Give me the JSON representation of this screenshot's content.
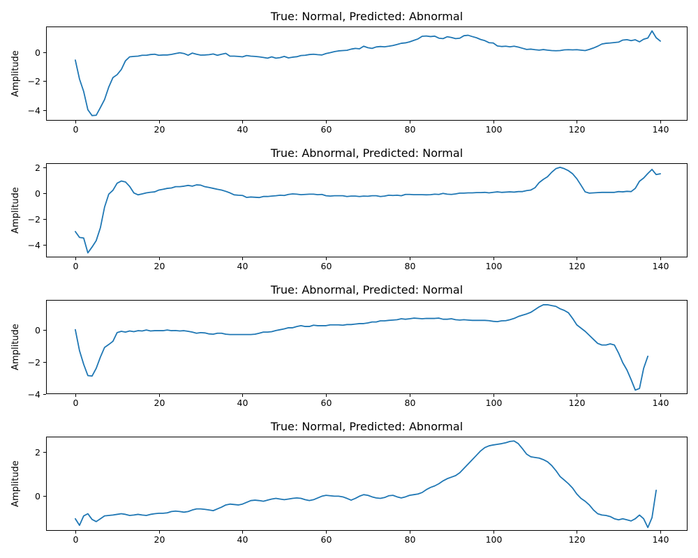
{
  "chart_data": [
    {
      "type": "line",
      "title": "True: Normal, Predicted: Abnormal",
      "xlabel": "",
      "ylabel": "Amplitude",
      "xlim": [
        -7,
        146.5
      ],
      "ylim": [
        -4.7,
        1.75
      ],
      "xticks": [
        0,
        20,
        40,
        60,
        80,
        100,
        120,
        140
      ],
      "yticks": [
        -4,
        -2,
        0
      ],
      "grid": false,
      "series": [
        {
          "color": "#1f77b4",
          "values": [
            -0.55,
            -1.85,
            -2.7,
            -3.95,
            -4.35,
            -4.33,
            -3.8,
            -3.25,
            -2.4,
            -1.75,
            -1.55,
            -1.2,
            -0.6,
            -0.33,
            -0.3,
            -0.28,
            -0.22,
            -0.22,
            -0.17,
            -0.15,
            -0.22,
            -0.2,
            -0.2,
            -0.16,
            -0.1,
            -0.05,
            -0.1,
            -0.22,
            -0.07,
            -0.15,
            -0.21,
            -0.2,
            -0.18,
            -0.13,
            -0.22,
            -0.15,
            -0.09,
            -0.28,
            -0.28,
            -0.3,
            -0.33,
            -0.24,
            -0.28,
            -0.3,
            -0.33,
            -0.37,
            -0.42,
            -0.33,
            -0.42,
            -0.38,
            -0.3,
            -0.4,
            -0.35,
            -0.32,
            -0.24,
            -0.22,
            -0.17,
            -0.15,
            -0.18,
            -0.2,
            -0.1,
            -0.04,
            0.03,
            0.08,
            0.1,
            0.12,
            0.2,
            0.25,
            0.22,
            0.4,
            0.3,
            0.25,
            0.35,
            0.38,
            0.36,
            0.4,
            0.45,
            0.52,
            0.6,
            0.63,
            0.7,
            0.8,
            0.9,
            1.08,
            1.1,
            1.06,
            1.09,
            0.95,
            0.92,
            1.05,
            1.0,
            0.92,
            0.95,
            1.12,
            1.15,
            1.06,
            0.98,
            0.86,
            0.78,
            0.64,
            0.62,
            0.42,
            0.38,
            0.4,
            0.36,
            0.4,
            0.34,
            0.26,
            0.18,
            0.2,
            0.16,
            0.13,
            0.17,
            0.13,
            0.1,
            0.09,
            0.1,
            0.15,
            0.16,
            0.15,
            0.16,
            0.13,
            0.1,
            0.18,
            0.28,
            0.4,
            0.55,
            0.6,
            0.62,
            0.65,
            0.68,
            0.82,
            0.85,
            0.78,
            0.84,
            0.7,
            0.88,
            0.96,
            1.45,
            0.98,
            0.75
          ]
        }
      ]
    },
    {
      "type": "line",
      "title": "True: Abnormal, Predicted: Normal",
      "xlabel": "",
      "ylabel": "Amplitude",
      "xlim": [
        -7,
        146.5
      ],
      "ylim": [
        -5.0,
        2.3
      ],
      "xticks": [
        0,
        20,
        40,
        60,
        80,
        100,
        120,
        140
      ],
      "yticks": [
        -4,
        -2,
        0,
        2
      ],
      "grid": false,
      "series": [
        {
          "color": "#1f77b4",
          "values": [
            -3.0,
            -3.45,
            -3.5,
            -4.65,
            -4.2,
            -3.7,
            -2.7,
            -1.1,
            -0.1,
            0.2,
            0.75,
            0.92,
            0.85,
            0.5,
            0.0,
            -0.15,
            -0.08,
            0.0,
            0.05,
            0.08,
            0.22,
            0.28,
            0.35,
            0.38,
            0.48,
            0.48,
            0.52,
            0.58,
            0.52,
            0.62,
            0.6,
            0.48,
            0.42,
            0.35,
            0.28,
            0.22,
            0.12,
            0.0,
            -0.15,
            -0.18,
            -0.2,
            -0.35,
            -0.32,
            -0.34,
            -0.36,
            -0.28,
            -0.28,
            -0.25,
            -0.22,
            -0.18,
            -0.2,
            -0.12,
            -0.08,
            -0.1,
            -0.14,
            -0.12,
            -0.1,
            -0.1,
            -0.14,
            -0.12,
            -0.22,
            -0.25,
            -0.22,
            -0.22,
            -0.22,
            -0.28,
            -0.25,
            -0.25,
            -0.28,
            -0.25,
            -0.26,
            -0.22,
            -0.22,
            -0.28,
            -0.25,
            -0.18,
            -0.2,
            -0.18,
            -0.22,
            -0.12,
            -0.12,
            -0.14,
            -0.14,
            -0.14,
            -0.15,
            -0.14,
            -0.1,
            -0.12,
            -0.04,
            -0.1,
            -0.12,
            -0.08,
            -0.02,
            -0.02,
            0.0,
            0.0,
            0.02,
            0.02,
            0.04,
            0.0,
            0.04,
            0.08,
            0.04,
            0.06,
            0.08,
            0.06,
            0.1,
            0.1,
            0.18,
            0.22,
            0.4,
            0.8,
            1.05,
            1.25,
            1.6,
            1.88,
            1.98,
            1.88,
            1.72,
            1.48,
            1.1,
            0.6,
            0.08,
            -0.02,
            0.0,
            0.02,
            0.04,
            0.04,
            0.04,
            0.04,
            0.1,
            0.08,
            0.12,
            0.1,
            0.35,
            0.9,
            1.15,
            1.5,
            1.82,
            1.42,
            1.48
          ]
        }
      ]
    },
    {
      "type": "line",
      "title": "True: Abnormal, Predicted: Normal",
      "xlabel": "",
      "ylabel": "Amplitude",
      "xlim": [
        -7,
        146.5
      ],
      "ylim": [
        -4.0,
        1.85
      ],
      "xticks": [
        0,
        20,
        40,
        60,
        80,
        100,
        120,
        140
      ],
      "yticks": [
        -4,
        -2,
        0
      ],
      "grid": false,
      "series": [
        {
          "color": "#1f77b4",
          "values": [
            0.0,
            -1.3,
            -2.15,
            -2.85,
            -2.88,
            -2.4,
            -1.7,
            -1.1,
            -0.92,
            -0.72,
            -0.18,
            -0.1,
            -0.15,
            -0.08,
            -0.12,
            -0.06,
            -0.08,
            -0.02,
            -0.08,
            -0.06,
            -0.06,
            -0.06,
            -0.02,
            -0.06,
            -0.05,
            -0.08,
            -0.06,
            -0.1,
            -0.15,
            -0.22,
            -0.18,
            -0.2,
            -0.26,
            -0.28,
            -0.22,
            -0.22,
            -0.28,
            -0.3,
            -0.3,
            -0.3,
            -0.3,
            -0.3,
            -0.3,
            -0.28,
            -0.22,
            -0.15,
            -0.15,
            -0.12,
            -0.05,
            0.0,
            0.05,
            0.12,
            0.12,
            0.2,
            0.25,
            0.2,
            0.2,
            0.28,
            0.25,
            0.25,
            0.25,
            0.3,
            0.3,
            0.3,
            0.28,
            0.32,
            0.32,
            0.35,
            0.38,
            0.38,
            0.42,
            0.48,
            0.48,
            0.55,
            0.55,
            0.58,
            0.6,
            0.62,
            0.68,
            0.65,
            0.68,
            0.72,
            0.7,
            0.68,
            0.7,
            0.7,
            0.7,
            0.72,
            0.65,
            0.65,
            0.68,
            0.62,
            0.6,
            0.62,
            0.6,
            0.58,
            0.58,
            0.58,
            0.58,
            0.56,
            0.52,
            0.5,
            0.55,
            0.56,
            0.62,
            0.7,
            0.82,
            0.9,
            0.98,
            1.08,
            1.25,
            1.42,
            1.55,
            1.55,
            1.5,
            1.45,
            1.3,
            1.2,
            1.05,
            0.7,
            0.3,
            0.1,
            -0.1,
            -0.35,
            -0.6,
            -0.85,
            -0.95,
            -0.95,
            -0.88,
            -0.95,
            -1.45,
            -2.05,
            -2.5,
            -3.1,
            -3.75,
            -3.65,
            -2.4,
            -1.65
          ]
        }
      ]
    },
    {
      "type": "line",
      "title": "True: Normal, Predicted: Abnormal",
      "xlabel": "",
      "ylabel": "Amplitude",
      "xlim": [
        -7,
        146.5
      ],
      "ylim": [
        -1.6,
        2.7
      ],
      "xticks": [
        0,
        20,
        40,
        60,
        80,
        100,
        120,
        140
      ],
      "yticks": [
        0,
        2
      ],
      "grid": false,
      "series": [
        {
          "color": "#1f77b4",
          "values": [
            -1.05,
            -1.35,
            -0.92,
            -0.82,
            -1.08,
            -1.18,
            -1.05,
            -0.92,
            -0.9,
            -0.88,
            -0.85,
            -0.82,
            -0.85,
            -0.9,
            -0.88,
            -0.85,
            -0.88,
            -0.9,
            -0.85,
            -0.82,
            -0.8,
            -0.8,
            -0.78,
            -0.72,
            -0.7,
            -0.72,
            -0.75,
            -0.72,
            -0.65,
            -0.6,
            -0.6,
            -0.62,
            -0.65,
            -0.68,
            -0.6,
            -0.52,
            -0.42,
            -0.38,
            -0.4,
            -0.42,
            -0.38,
            -0.3,
            -0.22,
            -0.2,
            -0.22,
            -0.25,
            -0.2,
            -0.15,
            -0.12,
            -0.15,
            -0.18,
            -0.15,
            -0.12,
            -0.1,
            -0.12,
            -0.18,
            -0.22,
            -0.18,
            -0.1,
            -0.02,
            0.02,
            0.0,
            -0.02,
            -0.02,
            -0.05,
            -0.12,
            -0.2,
            -0.12,
            -0.02,
            0.05,
            0.02,
            -0.05,
            -0.1,
            -0.12,
            -0.08,
            0.0,
            0.02,
            -0.05,
            -0.1,
            -0.05,
            0.02,
            0.05,
            0.08,
            0.15,
            0.28,
            0.38,
            0.45,
            0.55,
            0.68,
            0.78,
            0.85,
            0.92,
            1.05,
            1.25,
            1.45,
            1.65,
            1.85,
            2.05,
            2.2,
            2.28,
            2.32,
            2.35,
            2.38,
            2.42,
            2.48,
            2.5,
            2.38,
            2.15,
            1.9,
            1.78,
            1.75,
            1.72,
            1.65,
            1.55,
            1.38,
            1.15,
            0.88,
            0.72,
            0.55,
            0.35,
            0.08,
            -0.12,
            -0.25,
            -0.42,
            -0.65,
            -0.82,
            -0.88,
            -0.9,
            -0.95,
            -1.05,
            -1.1,
            -1.05,
            -1.1,
            -1.15,
            -1.05,
            -0.88,
            -1.05,
            -1.45,
            -1.0,
            0.25
          ]
        }
      ]
    }
  ]
}
